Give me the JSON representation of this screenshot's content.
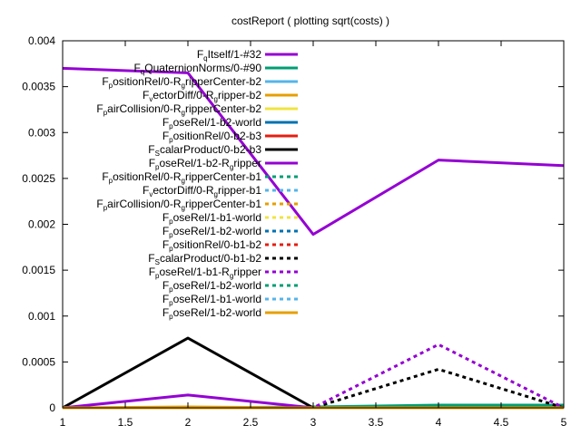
{
  "chart_data": {
    "type": "line",
    "title": "costReport ( plotting sqrt(costs) )",
    "xlabel": "",
    "ylabel": "",
    "xlim": [
      1,
      5
    ],
    "ylim": [
      0,
      0.004
    ],
    "grid": false,
    "legend_position": "top-right",
    "x_ticks": [
      "1",
      "1.5",
      "2",
      "2.5",
      "3",
      "3.5",
      "4",
      "4.5",
      "5"
    ],
    "y_ticks": [
      "0",
      "0.0005",
      "0.001",
      "0.0015",
      "0.002",
      "0.0025",
      "0.003",
      "0.0035",
      "0.004"
    ],
    "x": [
      1,
      2,
      3,
      4,
      5
    ],
    "series": [
      {
        "label_main": "F",
        "label_sub": "q",
        "label_rest": "Itself/1-#32",
        "color": "#9400d3",
        "dash": false,
        "values": [
          0.0037,
          0.00365,
          0.00189,
          0.0027,
          0.00264
        ]
      },
      {
        "label_main": "F",
        "label_sub": "q",
        "label_rest": "QuaternionNorms/0-#90",
        "color": "#009e73",
        "dash": false,
        "values": [
          0,
          0,
          1e-05,
          3e-05,
          3e-05
        ]
      },
      {
        "label_main": "F",
        "label_sub": "p",
        "label_rest": "ositionRel/0-R",
        "label_sub2": "g",
        "label_rest2": "ripperCenter-b2",
        "color": "#56b4e9",
        "dash": false,
        "values": [
          0,
          0,
          0,
          0,
          0
        ]
      },
      {
        "label_main": "F",
        "label_sub": "v",
        "label_rest": "ectorDiff/0-R",
        "label_sub2": "g",
        "label_rest2": "ripper-b2",
        "color": "#e69f00",
        "dash": false,
        "values": [
          0,
          1e-05,
          0,
          0,
          0
        ]
      },
      {
        "label_main": "F",
        "label_sub": "p",
        "label_rest": "airCollision/0-R",
        "label_sub2": "g",
        "label_rest2": "ripperCenter-b2",
        "color": "#f0e442",
        "dash": false,
        "values": [
          0,
          0,
          0,
          0,
          0
        ]
      },
      {
        "label_main": "F",
        "label_sub": "p",
        "label_rest": "oseRel/1-b2-world",
        "color": "#0072b2",
        "dash": false,
        "values": [
          0,
          0,
          0,
          0,
          0
        ]
      },
      {
        "label_main": "F",
        "label_sub": "p",
        "label_rest": "ositionRel/0-b2-b3",
        "color": "#e51e10",
        "dash": false,
        "values": [
          0,
          0,
          0,
          0,
          0
        ]
      },
      {
        "label_main": "F",
        "label_sub": "S",
        "label_rest": "calarProduct/0-b2-b3",
        "color": "#000000",
        "dash": false,
        "values": [
          0,
          0.00076,
          0,
          0,
          0
        ]
      },
      {
        "label_main": "F",
        "label_sub": "p",
        "label_rest": "oseRel/1-b2-R",
        "label_sub2": "g",
        "label_rest2": "ripper",
        "color": "#9400d3",
        "dash": false,
        "values": [
          0,
          0.00014,
          0,
          0,
          0
        ]
      },
      {
        "label_main": "F",
        "label_sub": "p",
        "label_rest": "ositionRel/0-R",
        "label_sub2": "g",
        "label_rest2": "ripperCenter-b1",
        "color": "#009e73",
        "dash": true,
        "values": [
          0,
          0,
          0,
          0,
          0
        ]
      },
      {
        "label_main": "F",
        "label_sub": "v",
        "label_rest": "ectorDiff/0-R",
        "label_sub2": "g",
        "label_rest2": "ripper-b1",
        "color": "#56b4e9",
        "dash": true,
        "values": [
          0,
          0,
          0,
          0,
          0
        ]
      },
      {
        "label_main": "F",
        "label_sub": "p",
        "label_rest": "airCollision/0-R",
        "label_sub2": "g",
        "label_rest2": "ripperCenter-b1",
        "color": "#e69f00",
        "dash": true,
        "values": [
          0,
          0,
          0,
          0,
          0
        ]
      },
      {
        "label_main": "F",
        "label_sub": "p",
        "label_rest": "oseRel/1-b1-world",
        "color": "#f0e442",
        "dash": true,
        "values": [
          0,
          0,
          0,
          0,
          0
        ]
      },
      {
        "label_main": "F",
        "label_sub": "p",
        "label_rest": "oseRel/1-b2-world",
        "color": "#0072b2",
        "dash": true,
        "values": [
          0,
          0,
          0,
          0,
          0
        ]
      },
      {
        "label_main": "F",
        "label_sub": "p",
        "label_rest": "ositionRel/0-b1-b2",
        "color": "#e51e10",
        "dash": true,
        "values": [
          0,
          0,
          0,
          0,
          0
        ]
      },
      {
        "label_main": "F",
        "label_sub": "S",
        "label_rest": "calarProduct/0-b1-b2",
        "color": "#000000",
        "dash": true,
        "values": [
          0,
          0,
          0,
          0.00042,
          0
        ]
      },
      {
        "label_main": "F",
        "label_sub": "p",
        "label_rest": "oseRel/1-b1-R",
        "label_sub2": "g",
        "label_rest2": "ripper",
        "color": "#9400d3",
        "dash": true,
        "values": [
          0,
          0,
          0,
          0.00069,
          0
        ]
      },
      {
        "label_main": "F",
        "label_sub": "p",
        "label_rest": "oseRel/1-b2-world",
        "color": "#009e73",
        "dash": true,
        "values": [
          0,
          0,
          0,
          0,
          0
        ]
      },
      {
        "label_main": "F",
        "label_sub": "p",
        "label_rest": "oseRel/1-b1-world",
        "color": "#56b4e9",
        "dash": true,
        "values": [
          0,
          0,
          0,
          0,
          0
        ]
      },
      {
        "label_main": "F",
        "label_sub": "p",
        "label_rest": "oseRel/1-b2-world",
        "color": "#e69f00",
        "dash": false,
        "values": [
          0,
          0,
          0,
          0,
          0
        ]
      }
    ]
  }
}
